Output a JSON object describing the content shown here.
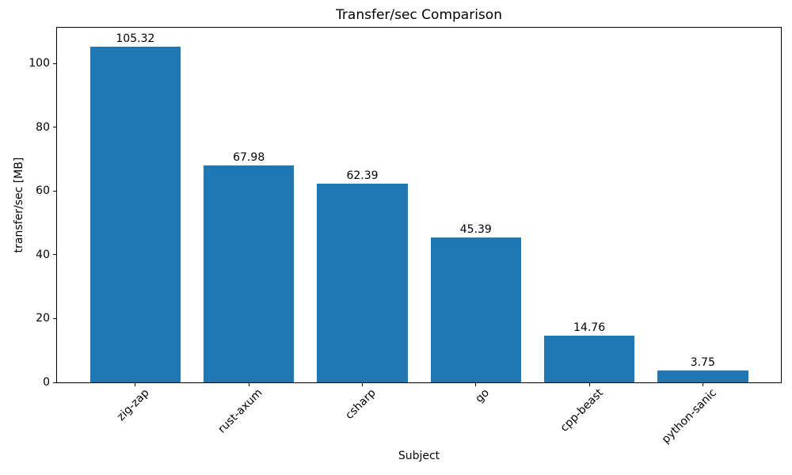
{
  "chart_data": {
    "type": "bar",
    "title": "Transfer/sec Comparison",
    "xlabel": "Subject",
    "ylabel": "transfer/sec [MB]",
    "categories": [
      "zig-zap",
      "rust-axum",
      "csharp",
      "go",
      "cpp-beast",
      "python-sanic"
    ],
    "values": [
      105.32,
      67.98,
      62.39,
      45.39,
      14.76,
      3.75
    ],
    "bar_value_labels": [
      "105.32",
      "67.98",
      "62.39",
      "45.39",
      "14.76",
      "3.75"
    ],
    "yticks": [
      0,
      20,
      40,
      60,
      80,
      100
    ],
    "ytick_labels": [
      "0",
      "20",
      "40",
      "60",
      "80",
      "100"
    ],
    "ylim": [
      0,
      111.2
    ],
    "bar_color": "#1f77b4",
    "text_color": "#000000",
    "grid": false,
    "legend": null,
    "x_tick_rotation_deg": 45
  }
}
